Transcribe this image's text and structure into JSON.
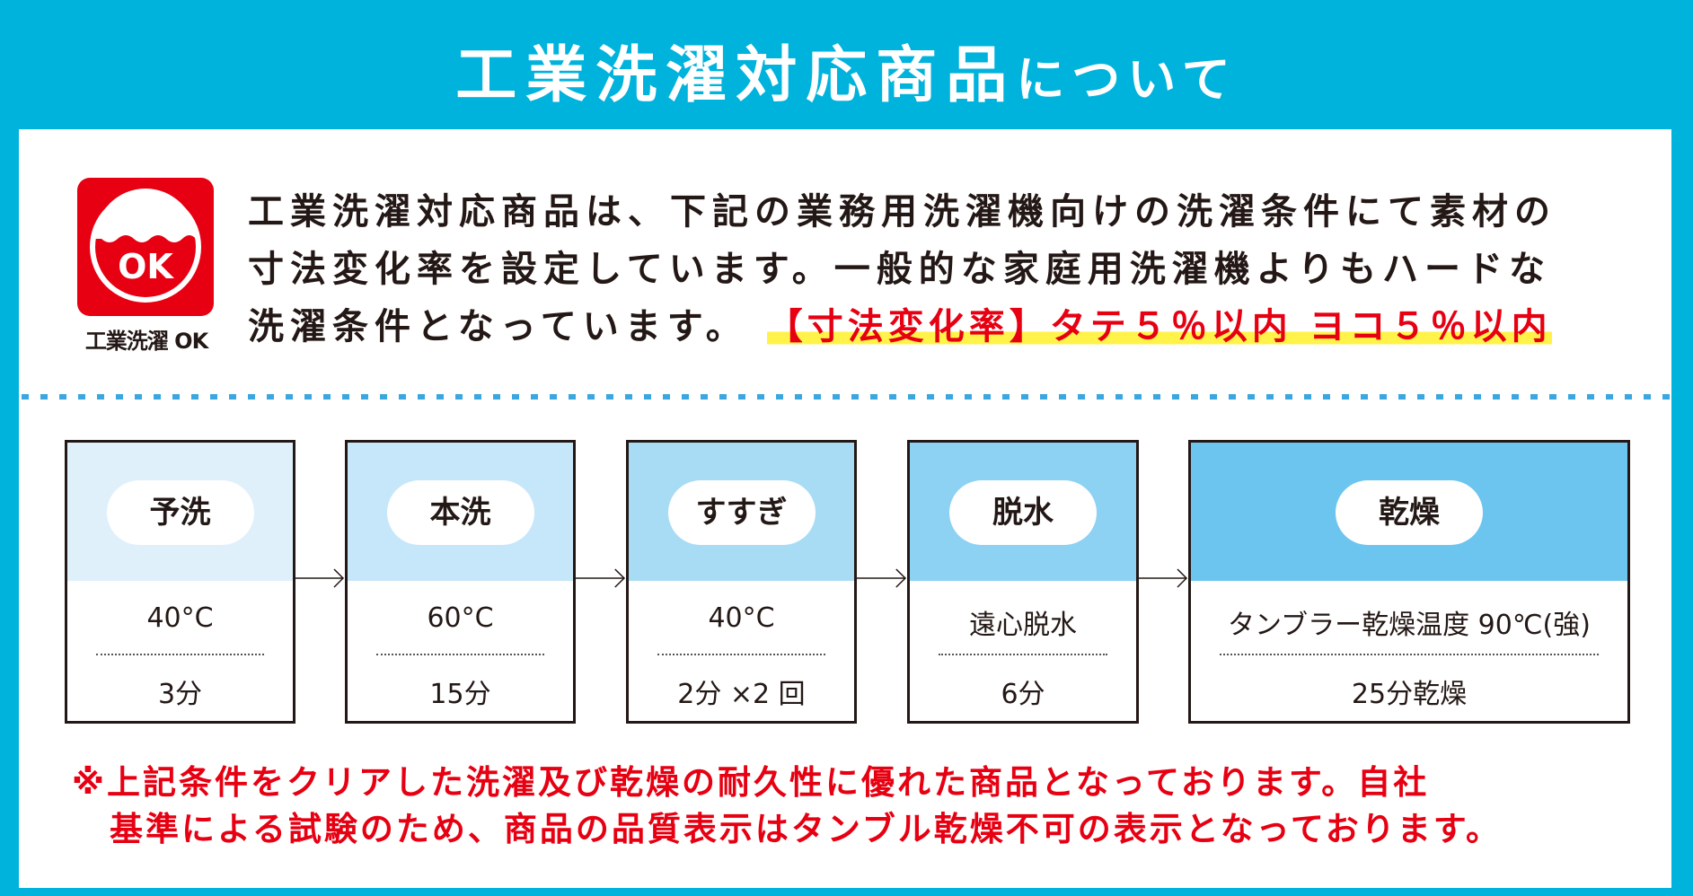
{
  "title": {
    "main": "工業洗濯対応商品",
    "suffix": "について"
  },
  "logo": {
    "badge_text": "OK",
    "caption": "工業洗濯 OK",
    "color": "#e60012"
  },
  "intro": {
    "line1": "工業洗濯対応商品は、下記の業務用洗濯機向けの洗濯条件にて素材の",
    "line2": "寸法変化率を設定しています。一般的な家庭用洗濯機よりもハードな",
    "line3": "洗濯条件となっています。",
    "highlight": "【寸法変化率】タテ５％以内 ヨコ５％以内"
  },
  "steps": [
    {
      "label": "予洗",
      "cond": "40°C",
      "time": "3分",
      "color": "#dff0fb"
    },
    {
      "label": "本洗",
      "cond": "60°C",
      "time": "15分",
      "color": "#c6e7f9"
    },
    {
      "label": "すすぎ",
      "cond": "40°C",
      "time": "2分 ×2 回",
      "color": "#a8dcf5"
    },
    {
      "label": "脱水",
      "cond": "遠心脱水",
      "time": "6分",
      "color": "#8dd1f3"
    },
    {
      "label": "乾燥",
      "cond": "タンブラー乾燥温度 90℃(強)",
      "time": "25分乾燥",
      "color": "#6cc5ee"
    }
  ],
  "note": {
    "line1": "※上記条件をクリアした洗濯及び乾燥の耐久性に優れた商品となっております。自社",
    "line2": "基準による試験のため、商品の品質表示はタンブル乾燥不可の表示となっております。"
  },
  "colors": {
    "background": "#00b3dd",
    "accent_red": "#e60012",
    "highlight": "#fff34a",
    "divider": "#3aa7e0"
  }
}
